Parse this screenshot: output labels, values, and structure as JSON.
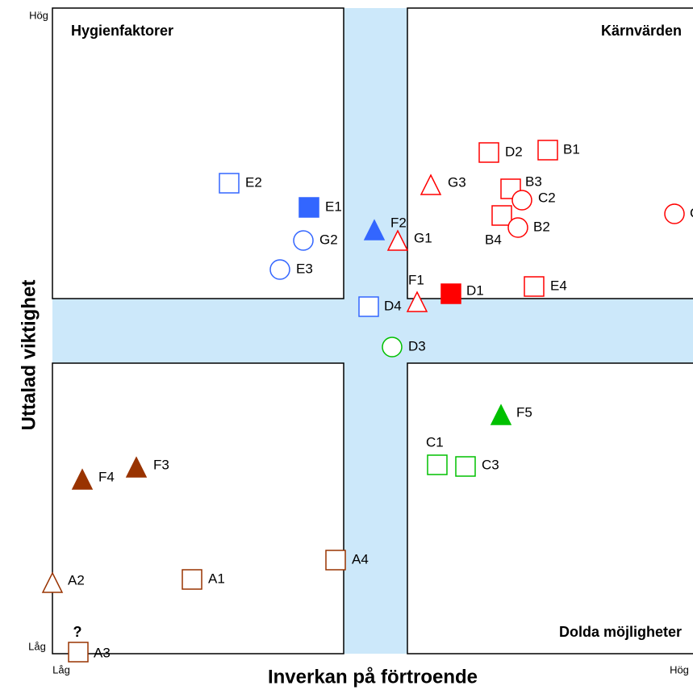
{
  "quadrants": {
    "top_left": "Hygienfaktorer",
    "top_right": "Kärnvärden",
    "bottom_right": "Dolda möjligheter"
  },
  "x_axis": {
    "title": "Inverkan på förtroende",
    "low": "Låg",
    "high": "Hög"
  },
  "y_axis": {
    "title": "Uttalad viktighet",
    "low": "Låg",
    "high": "Hög"
  },
  "annotation": "?",
  "nodes": [
    {
      "label": "E2",
      "shape": "square",
      "color": "#3366ff",
      "filled": false
    },
    {
      "label": "E1",
      "shape": "square",
      "color": "#3366ff",
      "filled": true
    },
    {
      "label": "G2",
      "shape": "circle",
      "color": "#3366ff",
      "filled": false
    },
    {
      "label": "E3",
      "shape": "circle",
      "color": "#3366ff",
      "filled": false
    },
    {
      "label": "F2",
      "shape": "triangle",
      "color": "#3366ff",
      "filled": true
    },
    {
      "label": "G1",
      "shape": "triangle",
      "color": "#ff0000",
      "filled": false
    },
    {
      "label": "G3",
      "shape": "triangle",
      "color": "#ff0000",
      "filled": false
    },
    {
      "label": "D2",
      "shape": "square",
      "color": "#ff0000",
      "filled": false
    },
    {
      "label": "B1",
      "shape": "square",
      "color": "#ff0000",
      "filled": false
    },
    {
      "label": "B3",
      "shape": "square",
      "color": "#ff0000",
      "filled": false
    },
    {
      "label": "C2",
      "shape": "circle",
      "color": "#ff0000",
      "filled": false
    },
    {
      "label": "B4",
      "shape": "square",
      "color": "#ff0000",
      "filled": false
    },
    {
      "label": "B2",
      "shape": "circle",
      "color": "#ff0000",
      "filled": false
    },
    {
      "label": "C",
      "shape": "circle",
      "color": "#ff0000",
      "filled": false
    },
    {
      "label": "E4",
      "shape": "square",
      "color": "#ff0000",
      "filled": false
    },
    {
      "label": "D1",
      "shape": "square",
      "color": "#ff0000",
      "filled": true
    },
    {
      "label": "F1",
      "shape": "triangle",
      "color": "#ff0000",
      "filled": false
    },
    {
      "label": "D4",
      "shape": "square",
      "color": "#3366ff",
      "filled": false
    },
    {
      "label": "D3",
      "shape": "circle",
      "color": "#00c000",
      "filled": false
    },
    {
      "label": "F5",
      "shape": "triangle",
      "color": "#00c000",
      "filled": true
    },
    {
      "label": "C1",
      "shape": "square",
      "color": "#00c000",
      "filled": false
    },
    {
      "label": "C3",
      "shape": "square",
      "color": "#00c000",
      "filled": false
    },
    {
      "label": "F3",
      "shape": "triangle",
      "color": "#993300",
      "filled": true
    },
    {
      "label": "F4",
      "shape": "triangle",
      "color": "#993300",
      "filled": true
    },
    {
      "label": "A4",
      "shape": "square",
      "color": "#993300",
      "filled": false
    },
    {
      "label": "A1",
      "shape": "square",
      "color": "#993300",
      "filled": false
    },
    {
      "label": "A2",
      "shape": "triangle",
      "color": "#993300",
      "filled": false
    },
    {
      "label": "A3",
      "shape": "square",
      "color": "#993300",
      "filled": false
    }
  ]
}
